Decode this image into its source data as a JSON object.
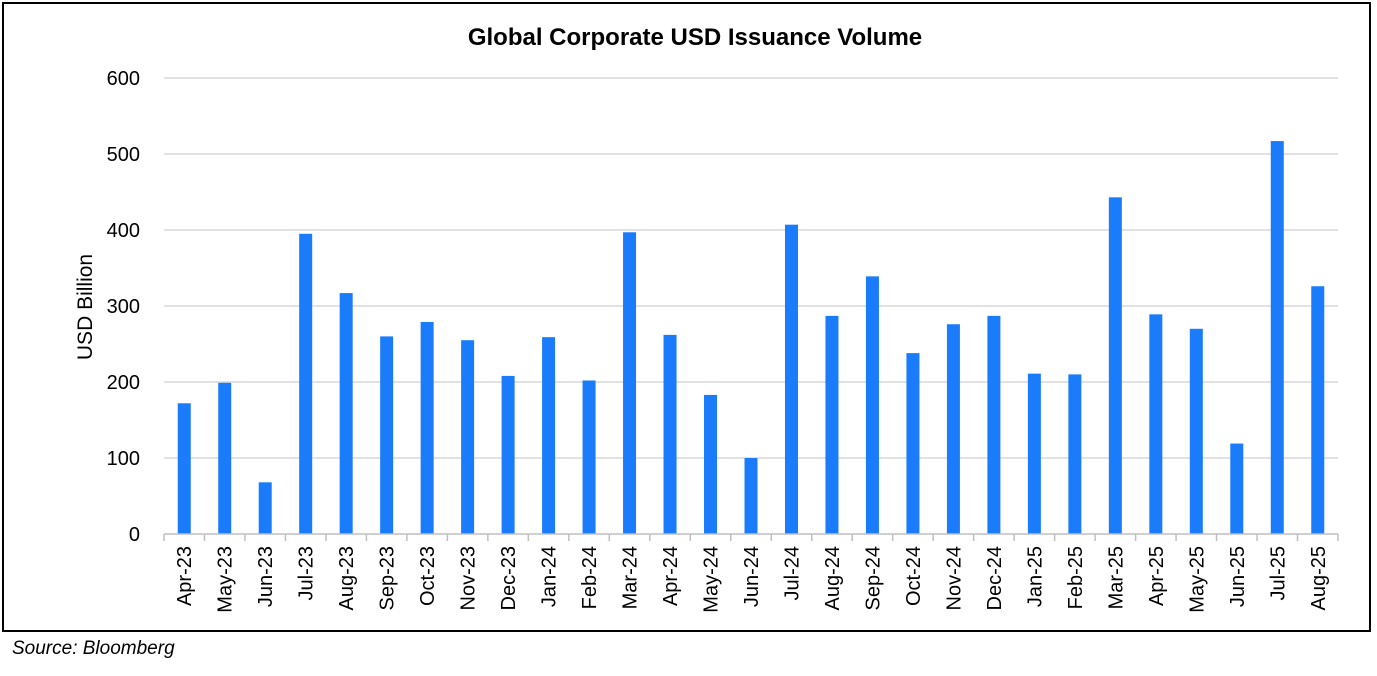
{
  "chart_data": {
    "type": "bar",
    "title": "Global Corporate USD Issuance Volume",
    "xlabel": "",
    "ylabel": "USD Billion",
    "ylim": [
      0,
      600
    ],
    "yticks": [
      "0",
      "100",
      "200",
      "300",
      "400",
      "500",
      "600"
    ],
    "ytick_values": [
      0,
      100,
      200,
      300,
      400,
      500,
      600
    ],
    "grid": true,
    "legend": "none",
    "categories": [
      "Apr-23",
      "May-23",
      "Jun-23",
      "Jul-23",
      "Aug-23",
      "Sep-23",
      "Oct-23",
      "Nov-23",
      "Dec-23",
      "Jan-24",
      "Feb-24",
      "Mar-24",
      "Apr-24",
      "May-24",
      "Jun-24",
      "Jul-24",
      "Aug-24",
      "Sep-24",
      "Oct-24",
      "Nov-24",
      "Dec-24",
      "Jan-25",
      "Feb-25",
      "Mar-25",
      "Apr-25",
      "May-25",
      "Jun-25",
      "Jul-25",
      "Aug-25"
    ],
    "series": [
      {
        "name": "Issuance Volume",
        "values": [
          172,
          199,
          68,
          395,
          317,
          260,
          279,
          255,
          208,
          259,
          202,
          397,
          262,
          183,
          100,
          407,
          287,
          339,
          238,
          276,
          287,
          211,
          210,
          443,
          289,
          270,
          119,
          517,
          326
        ]
      }
    ],
    "colors": {
      "bar": "#1a7cfa",
      "grid": "#d9d9d9",
      "axis": "#bfbfbf",
      "text": "#000000"
    }
  },
  "footer": {
    "source": "Source: Bloomberg"
  }
}
